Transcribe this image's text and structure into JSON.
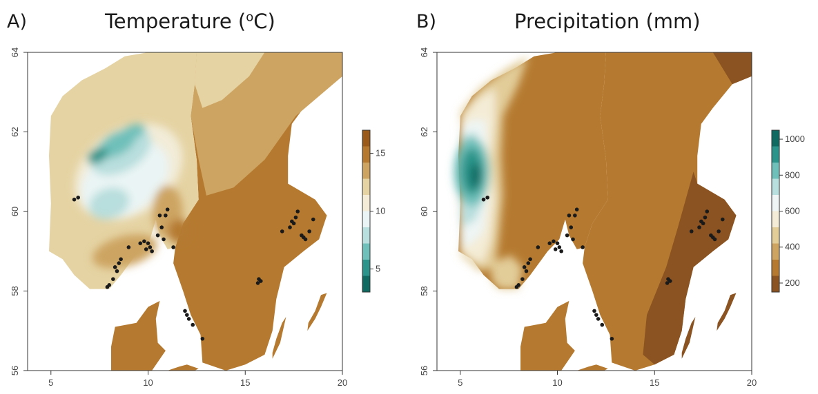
{
  "panels": [
    {
      "letter": "A)",
      "title_prefix": "Temperature (",
      "title_sup": "o",
      "title_suffix": "C)",
      "xaxis": {
        "ticks": [
          "5",
          "10",
          "15",
          "20"
        ],
        "range": [
          3.8,
          20
        ]
      },
      "yaxis": {
        "ticks": [
          "56",
          "58",
          "60",
          "62",
          "64"
        ],
        "range": [
          56,
          64
        ]
      },
      "legend": {
        "ticks": [
          "15",
          "10",
          "5"
        ],
        "colors": [
          "#9a5b1a",
          "#b57a30",
          "#cda462",
          "#e5d3a3",
          "#f4ecd6",
          "#eaf4f4",
          "#b8dedd",
          "#6fc0ba",
          "#2c948a",
          "#106a62"
        ],
        "range": [
          3,
          17
        ]
      }
    },
    {
      "letter": "B)",
      "title": "Precipitation (mm)",
      "xaxis": {
        "ticks": [
          "5",
          "10",
          "15",
          "20"
        ],
        "range": [
          3.8,
          20
        ]
      },
      "yaxis": {
        "ticks": [
          "56",
          "58",
          "60",
          "62",
          "64"
        ],
        "range": [
          56,
          64
        ]
      },
      "legend": {
        "ticks": [
          "1000",
          "800",
          "600",
          "400",
          "200"
        ],
        "colors": [
          "#106a62",
          "#2c948a",
          "#6fc0ba",
          "#b8dedd",
          "#eef5f4",
          "#f4ecd6",
          "#e2cc98",
          "#cda462",
          "#b57a30",
          "#8a5321"
        ],
        "range": [
          150,
          1050
        ]
      }
    }
  ],
  "chart_data": {
    "type": "scatter",
    "xlabel": "",
    "ylabel": "",
    "xlim": [
      3.8,
      20
    ],
    "ylim": [
      56,
      64
    ],
    "points": [
      {
        "x": 6.2,
        "y": 60.3
      },
      {
        "x": 6.4,
        "y": 60.35
      },
      {
        "x": 7.9,
        "y": 58.1
      },
      {
        "x": 8.0,
        "y": 58.15
      },
      {
        "x": 8.2,
        "y": 58.3
      },
      {
        "x": 8.4,
        "y": 58.5
      },
      {
        "x": 8.5,
        "y": 58.7
      },
      {
        "x": 8.6,
        "y": 58.8
      },
      {
        "x": 8.3,
        "y": 58.6
      },
      {
        "x": 9.0,
        "y": 59.1
      },
      {
        "x": 9.6,
        "y": 59.2
      },
      {
        "x": 9.8,
        "y": 59.25
      },
      {
        "x": 10.0,
        "y": 59.2
      },
      {
        "x": 10.1,
        "y": 59.1
      },
      {
        "x": 9.9,
        "y": 59.05
      },
      {
        "x": 10.2,
        "y": 59.0
      },
      {
        "x": 10.5,
        "y": 59.4
      },
      {
        "x": 10.7,
        "y": 59.6
      },
      {
        "x": 10.6,
        "y": 59.9
      },
      {
        "x": 10.9,
        "y": 59.9
      },
      {
        "x": 11.0,
        "y": 60.05
      },
      {
        "x": 10.8,
        "y": 59.3
      },
      {
        "x": 11.3,
        "y": 59.1
      },
      {
        "x": 11.9,
        "y": 57.5
      },
      {
        "x": 12.0,
        "y": 57.4
      },
      {
        "x": 12.1,
        "y": 57.3
      },
      {
        "x": 12.3,
        "y": 57.15
      },
      {
        "x": 12.8,
        "y": 56.8
      },
      {
        "x": 15.7,
        "y": 58.3
      },
      {
        "x": 15.8,
        "y": 58.25
      },
      {
        "x": 15.65,
        "y": 58.2
      },
      {
        "x": 16.9,
        "y": 59.5
      },
      {
        "x": 17.3,
        "y": 59.6
      },
      {
        "x": 17.5,
        "y": 59.7
      },
      {
        "x": 17.7,
        "y": 60.0
      },
      {
        "x": 17.6,
        "y": 59.85
      },
      {
        "x": 17.9,
        "y": 59.4
      },
      {
        "x": 18.0,
        "y": 59.35
      },
      {
        "x": 18.1,
        "y": 59.3
      },
      {
        "x": 18.3,
        "y": 59.5
      },
      {
        "x": 18.5,
        "y": 59.8
      },
      {
        "x": 17.4,
        "y": 59.75
      }
    ]
  }
}
